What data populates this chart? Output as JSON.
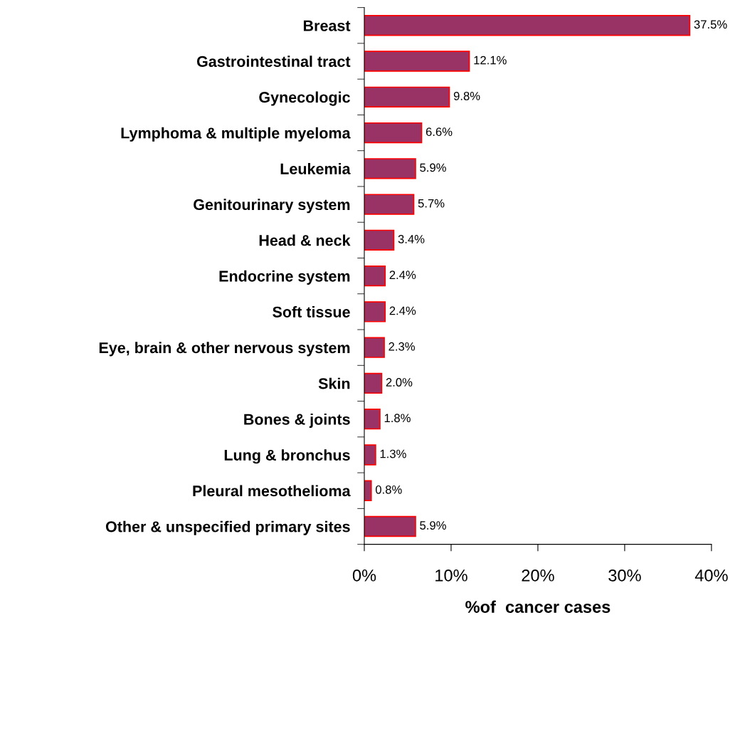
{
  "chart_data": {
    "type": "bar",
    "orientation": "horizontal",
    "xlabel": "%of  cancer cases",
    "categories": [
      "Breast",
      "Gastrointestinal tract",
      "Gynecologic",
      "Lymphoma & multiple myeloma",
      "Leukemia",
      "Genitourinary system",
      "Head & neck",
      "Endocrine system",
      "Soft tissue",
      "Eye, brain & other nervous system",
      "Skin",
      "Bones & joints",
      "Lung & bronchus",
      "Pleural mesothelioma",
      "Other & unspecified primary sites"
    ],
    "values": [
      37.5,
      12.1,
      9.8,
      6.6,
      5.9,
      5.7,
      3.4,
      2.4,
      2.4,
      2.3,
      2.0,
      1.8,
      1.3,
      0.8,
      5.9
    ],
    "value_labels": [
      "37.5%",
      "12.1%",
      "9.8%",
      "6.6%",
      "5.9%",
      "5.7%",
      "3.4%",
      "2.4%",
      "2.4%",
      "2.3%",
      "2.0%",
      "1.8%",
      "1.3%",
      "0.8%",
      "5.9%"
    ],
    "color": "#993366",
    "xlim": [
      0,
      40
    ],
    "xticks": [
      {
        "value": 0,
        "label": "0%"
      },
      {
        "value": 10,
        "label": "10%"
      },
      {
        "value": 20,
        "label": "20%"
      },
      {
        "value": 30,
        "label": "30%"
      },
      {
        "value": 40,
        "label": "40%"
      }
    ],
    "grid": false,
    "legend": false
  }
}
